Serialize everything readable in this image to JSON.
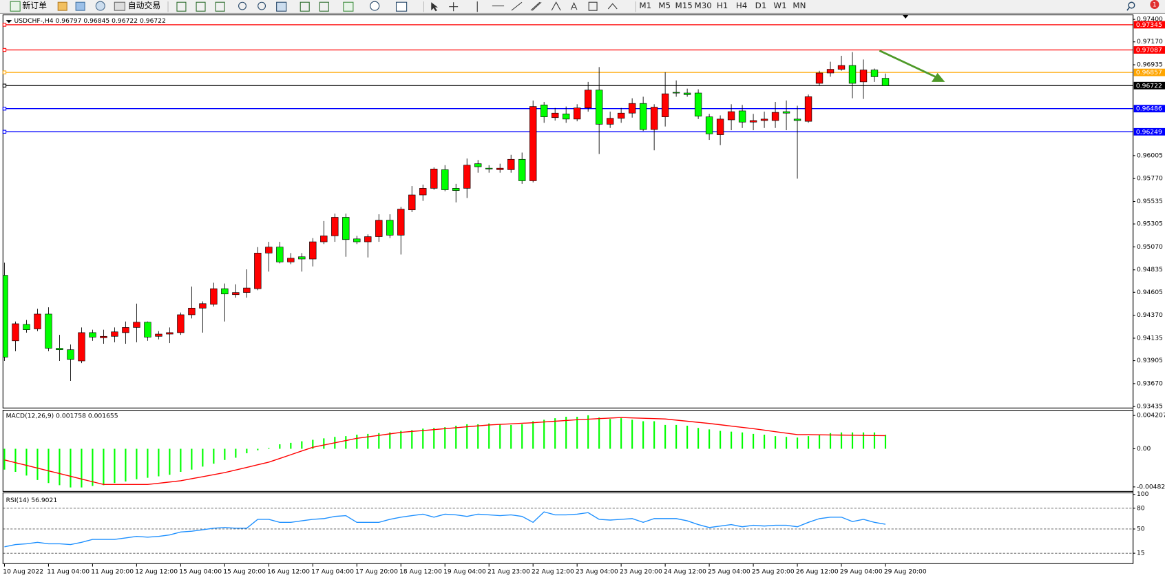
{
  "toolbar": {
    "buttons": [
      "新订单",
      "自动交易"
    ],
    "timeframes": [
      "M1",
      "M5",
      "M15",
      "M30",
      "H1",
      "H4",
      "D1",
      "W1",
      "MN"
    ],
    "notification_count": 1
  },
  "chart_data": [
    {
      "type": "candlestick",
      "title": "USDCHF-,H4  0.96797 0.96845 0.96722 0.96722",
      "up_color": "#ff0000",
      "down_color": "#00ff00",
      "categories": [
        "10 Aug 2022",
        null,
        null,
        null,
        "11 Aug 04:00",
        null,
        null,
        null,
        "11 Aug 20:00",
        null,
        null,
        null,
        "12 Aug 12:00",
        null,
        null,
        null,
        "15 Aug 04:00",
        null,
        null,
        null,
        "15 Aug 20:00",
        null,
        null,
        null,
        "16 Aug 12:00",
        null,
        null,
        null,
        "17 Aug 04:00",
        null,
        null,
        null,
        "17 Aug 20:00",
        null,
        null,
        null,
        "18 Aug 12:00",
        null,
        null,
        null,
        "19 Aug 04:00",
        null,
        null,
        null,
        "21 Aug 23:00",
        null,
        null,
        null,
        "22 Aug 12:00",
        null,
        null,
        null,
        "23 Aug 04:00",
        null,
        null,
        null,
        "23 Aug 20:00",
        null,
        null,
        null,
        "24 Aug 12:00",
        null,
        null,
        null,
        "25 Aug 04:00",
        null,
        null,
        null,
        "25 Aug 20:00",
        null,
        null,
        null,
        "26 Aug 12:00",
        null,
        null,
        null,
        "29 Aug 04:00",
        null,
        null,
        null,
        "29 Aug 20:00"
      ],
      "open": [
        0.94779,
        0.94108,
        0.94276,
        0.9423,
        0.94382,
        0.94032,
        0.94017,
        0.93902,
        0.94192,
        0.94139,
        0.94154,
        0.94192,
        0.94245,
        0.94299,
        0.94154,
        0.94177,
        0.94192,
        0.94375,
        0.94443,
        0.94482,
        0.94642,
        0.94581,
        0.94603,
        0.94642,
        0.95007,
        0.95068,
        0.94916,
        0.94969,
        0.94946,
        0.95122,
        0.95183,
        0.95373,
        0.95152,
        0.95122,
        0.95175,
        0.95343,
        0.9519,
        0.95449,
        0.95602,
        0.9567,
        0.95861,
        0.9567,
        0.9567,
        0.95922,
        0.95876,
        0.95861,
        0.95861,
        0.95967,
        0.95747,
        0.96524,
        0.96394,
        0.96432,
        0.96379,
        0.96493,
        0.96676,
        0.96326,
        0.96387,
        0.9644,
        0.96539,
        0.96272,
        0.96402,
        0.96653,
        0.96646,
        0.96646,
        0.96402,
        0.96219,
        0.96371,
        0.96463,
        0.96348,
        0.96364,
        0.96364,
        0.96455,
        0.96379,
        0.96356,
        0.96745,
        0.96851,
        0.96889,
        0.96928,
        0.9676,
        0.96882,
        0.96797
      ],
      "high": [
        0.94908,
        0.94306,
        0.94322,
        0.94436,
        0.94451,
        0.94169,
        0.9407,
        0.94245,
        0.94222,
        0.94222,
        0.94245,
        0.94306,
        0.94489,
        0.94306,
        0.94207,
        0.94245,
        0.94398,
        0.94664,
        0.94512,
        0.94703,
        0.94695,
        0.94687,
        0.9484,
        0.95068,
        0.95122,
        0.95122,
        0.95007,
        0.95007,
        0.9516,
        0.95335,
        0.95411,
        0.95411,
        0.95183,
        0.95198,
        0.95404,
        0.95404,
        0.9548,
        0.95693,
        0.95708,
        0.95884,
        0.95907,
        0.95716,
        0.95975,
        0.9596,
        0.95907,
        0.95922,
        0.96013,
        0.96036,
        0.96569,
        0.96554,
        0.96493,
        0.96508,
        0.96531,
        0.9676,
        0.96912,
        0.96455,
        0.96493,
        0.96592,
        0.96608,
        0.96531,
        0.96859,
        0.96775,
        0.96691,
        0.96684,
        0.96432,
        0.96417,
        0.96531,
        0.96524,
        0.96432,
        0.96455,
        0.96554,
        0.96569,
        0.96516,
        0.9663,
        0.96874,
        0.96966,
        0.97027,
        0.97065,
        0.96989,
        0.96897,
        0.96845
      ],
      "low": [
        0.93902,
        0.94002,
        0.94192,
        0.94207,
        0.94002,
        0.93902,
        0.93697,
        0.9388,
        0.94108,
        0.94078,
        0.94093,
        0.94078,
        0.94093,
        0.94108,
        0.94123,
        0.94085,
        0.94169,
        0.94337,
        0.94192,
        0.94459,
        0.94306,
        0.9455,
        0.9455,
        0.94626,
        0.94817,
        0.94901,
        0.94893,
        0.94817,
        0.9487,
        0.95099,
        0.95122,
        0.94969,
        0.95099,
        0.94962,
        0.95122,
        0.9516,
        0.94992,
        0.95426,
        0.95541,
        0.95655,
        0.9564,
        0.95526,
        0.95571,
        0.9583,
        0.9583,
        0.9583,
        0.9583,
        0.95716,
        0.95731,
        0.96341,
        0.96364,
        0.96341,
        0.96356,
        0.96455,
        0.96021,
        0.96288,
        0.96341,
        0.96394,
        0.96257,
        0.96059,
        0.96303,
        0.96608,
        0.96608,
        0.96379,
        0.96166,
        0.96112,
        0.96265,
        0.96288,
        0.96265,
        0.96288,
        0.96288,
        0.96265,
        0.95769,
        0.96341,
        0.96722,
        0.96813,
        0.96874,
        0.96592,
        0.96585,
        0.9676,
        0.96722
      ],
      "close": [
        0.93941,
        0.94283,
        0.94222,
        0.94382,
        0.94032,
        0.94017,
        0.93918,
        0.94192,
        0.94146,
        0.94154,
        0.942,
        0.94245,
        0.94299,
        0.94146,
        0.94177,
        0.94192,
        0.94375,
        0.94443,
        0.94489,
        0.94642,
        0.94588,
        0.94603,
        0.94649,
        0.95007,
        0.95068,
        0.94916,
        0.94954,
        0.94946,
        0.95122,
        0.95183,
        0.95373,
        0.95145,
        0.95122,
        0.95175,
        0.95343,
        0.9519,
        0.95457,
        0.95602,
        0.9567,
        0.95868,
        0.95655,
        0.95647,
        0.95907,
        0.95891,
        0.95868,
        0.95876,
        0.95967,
        0.95747,
        0.96508,
        0.96402,
        0.9644,
        0.96379,
        0.96493,
        0.96676,
        0.96326,
        0.96387,
        0.9644,
        0.96539,
        0.96272,
        0.96501,
        0.96638,
        0.96646,
        0.9663,
        0.96409,
        0.96227,
        0.96379,
        0.96455,
        0.96348,
        0.96364,
        0.96379,
        0.96448,
        0.9644,
        0.96364,
        0.96608,
        0.96851,
        0.96889,
        0.96928,
        0.96745,
        0.96882,
        0.96813,
        0.96722
      ],
      "ylim": [
        0.9342,
        0.97446
      ],
      "yticks": [
        {
          "value": 0.974,
          "label": "0.97400"
        },
        {
          "value": 0.9717,
          "label": "0.97170"
        },
        0.96935,
        0.96005,
        {
          "value": 0.9577,
          "label": "0.95770"
        },
        0.95535,
        0.95305,
        {
          "value": 0.9507,
          "label": "0.95070"
        },
        0.94835,
        0.94605,
        {
          "value": 0.9437,
          "label": "0.94370"
        },
        0.94135,
        0.93905,
        {
          "value": 0.9367,
          "label": "0.93670"
        },
        0.93435
      ],
      "levels": [
        {
          "value": 0.97345,
          "color": "#ff0000"
        },
        {
          "value": 0.97087,
          "color": "#ff0000"
        },
        {
          "value": 0.96857,
          "color": "#ffa500"
        },
        {
          "value": 0.96722,
          "color": "#000000"
        },
        {
          "value": 0.96486,
          "color": "#0000ff"
        },
        {
          "value": 0.96249,
          "color": "#0000ff"
        }
      ]
    },
    {
      "type": "bar",
      "title": "MACD(12,26,9) 0.001758 0.001655",
      "series": [
        {
          "type": "bar",
          "color": "#00ff00",
          "values": [
            -0.002635,
            -0.002917,
            -0.003388,
            -0.003952,
            -0.004329,
            -0.004611,
            -0.004893,
            -0.004893,
            -0.004705,
            -0.004611,
            -0.004329,
            -0.00414,
            -0.003858,
            -0.00367,
            -0.003482,
            -0.003294,
            -0.002917,
            -0.002635,
            -0.002258,
            -0.001882,
            -0.001412,
            -0.001129,
            -0.000565,
            -0.000188,
            9.4e-05,
            0.000565,
            0.000753,
            0.000941,
            0.001129,
            0.001317,
            0.001506,
            0.0016,
            0.001788,
            0.001882,
            0.001976,
            0.00207,
            0.002258,
            0.002353,
            0.002541,
            0.002635,
            0.002729,
            0.002917,
            0.003105,
            0.003105,
            0.003199,
            0.003105,
            0.003011,
            0.003105,
            0.003482,
            0.00367,
            0.003858,
            0.004046,
            0.004046,
            0.004235,
            0.003952,
            0.003764,
            0.003858,
            0.00367,
            0.003482,
            0.003482,
            0.003011,
            0.003011,
            0.002917,
            0.002635,
            0.002447,
            0.002258,
            0.002164,
            0.00207,
            0.001882,
            0.001788,
            0.0016,
            0.001506,
            0.001412,
            0.0016,
            0.001788,
            0.001976,
            0.00207,
            0.00207,
            0.00207,
            0.00207,
            0.001758
          ]
        },
        {
          "type": "line",
          "color": "#ff0000",
          "values": [
            -0.001412,
            -0.001757,
            -0.002101,
            -0.002447,
            -0.002792,
            -0.003136,
            -0.003482,
            -0.003827,
            -0.004171,
            -0.004517,
            -0.004517,
            -0.004517,
            -0.004517,
            -0.004517,
            -0.00436,
            -0.004203,
            -0.004046,
            -0.003788,
            -0.003529,
            -0.00327,
            -0.003011,
            -0.002682,
            -0.002353,
            -0.002023,
            -0.001694,
            -0.001223,
            -0.000753,
            -0.000282,
            0.000188,
            0.000471,
            0.000753,
            0.001035,
            0.001317,
            0.001506,
            0.001694,
            0.001882,
            0.00207,
            0.002188,
            0.002305,
            0.002423,
            0.002541,
            0.002658,
            0.002776,
            0.002894,
            0.003011,
            0.003082,
            0.003152,
            0.003223,
            0.003294,
            0.003388,
            0.003482,
            0.003576,
            0.00367,
            0.003741,
            0.003811,
            0.003882,
            0.003952,
            0.003905,
            0.003858,
            0.003811,
            0.003764,
            0.003623,
            0.003482,
            0.003341,
            0.003199,
            0.003035,
            0.00287,
            0.002705,
            0.002541,
            0.002353,
            0.002164,
            0.001976,
            0.001788,
            0.001788,
            0.00177,
            0.00175,
            0.00173,
            0.00171,
            0.00169,
            0.00167,
            0.001655
          ]
        }
      ],
      "ylim": [
        -0.00539,
        0.00487
      ],
      "yticks": [
        0.004207,
        {
          "value": 0,
          "label": "0.00"
        },
        -0.004823
      ]
    },
    {
      "type": "line",
      "title": "RSI(14) 56.9021",
      "color": "#1e90ff",
      "values": [
        24.3,
        27.5,
        28.6,
        30.7,
        28.6,
        28.6,
        27.5,
        30.7,
        35.0,
        35.0,
        35.0,
        37.1,
        39.3,
        38.2,
        39.3,
        41.4,
        45.7,
        46.8,
        48.9,
        51.1,
        52.1,
        51.1,
        51.1,
        63.9,
        63.9,
        59.6,
        59.6,
        61.8,
        63.9,
        65.0,
        68.2,
        69.3,
        59.6,
        59.6,
        59.6,
        63.9,
        67.1,
        69.3,
        71.4,
        67.1,
        71.4,
        70.4,
        68.2,
        71.4,
        70.4,
        69.3,
        70.4,
        68.2,
        59.6,
        74.7,
        70.4,
        70.4,
        71.4,
        73.6,
        63.9,
        62.9,
        63.9,
        65.0,
        59.6,
        65.0,
        65.0,
        65.0,
        61.8,
        56.4,
        52.1,
        54.3,
        56.4,
        53.2,
        55.4,
        54.3,
        55.4,
        55.4,
        53.2,
        59.6,
        65.0,
        67.1,
        67.1,
        60.7,
        63.9,
        59.6,
        56.9021
      ],
      "ylim": [
        0,
        100
      ],
      "yticks": [
        100,
        80,
        50,
        15
      ],
      "levels": [
        80,
        50,
        15
      ]
    }
  ]
}
